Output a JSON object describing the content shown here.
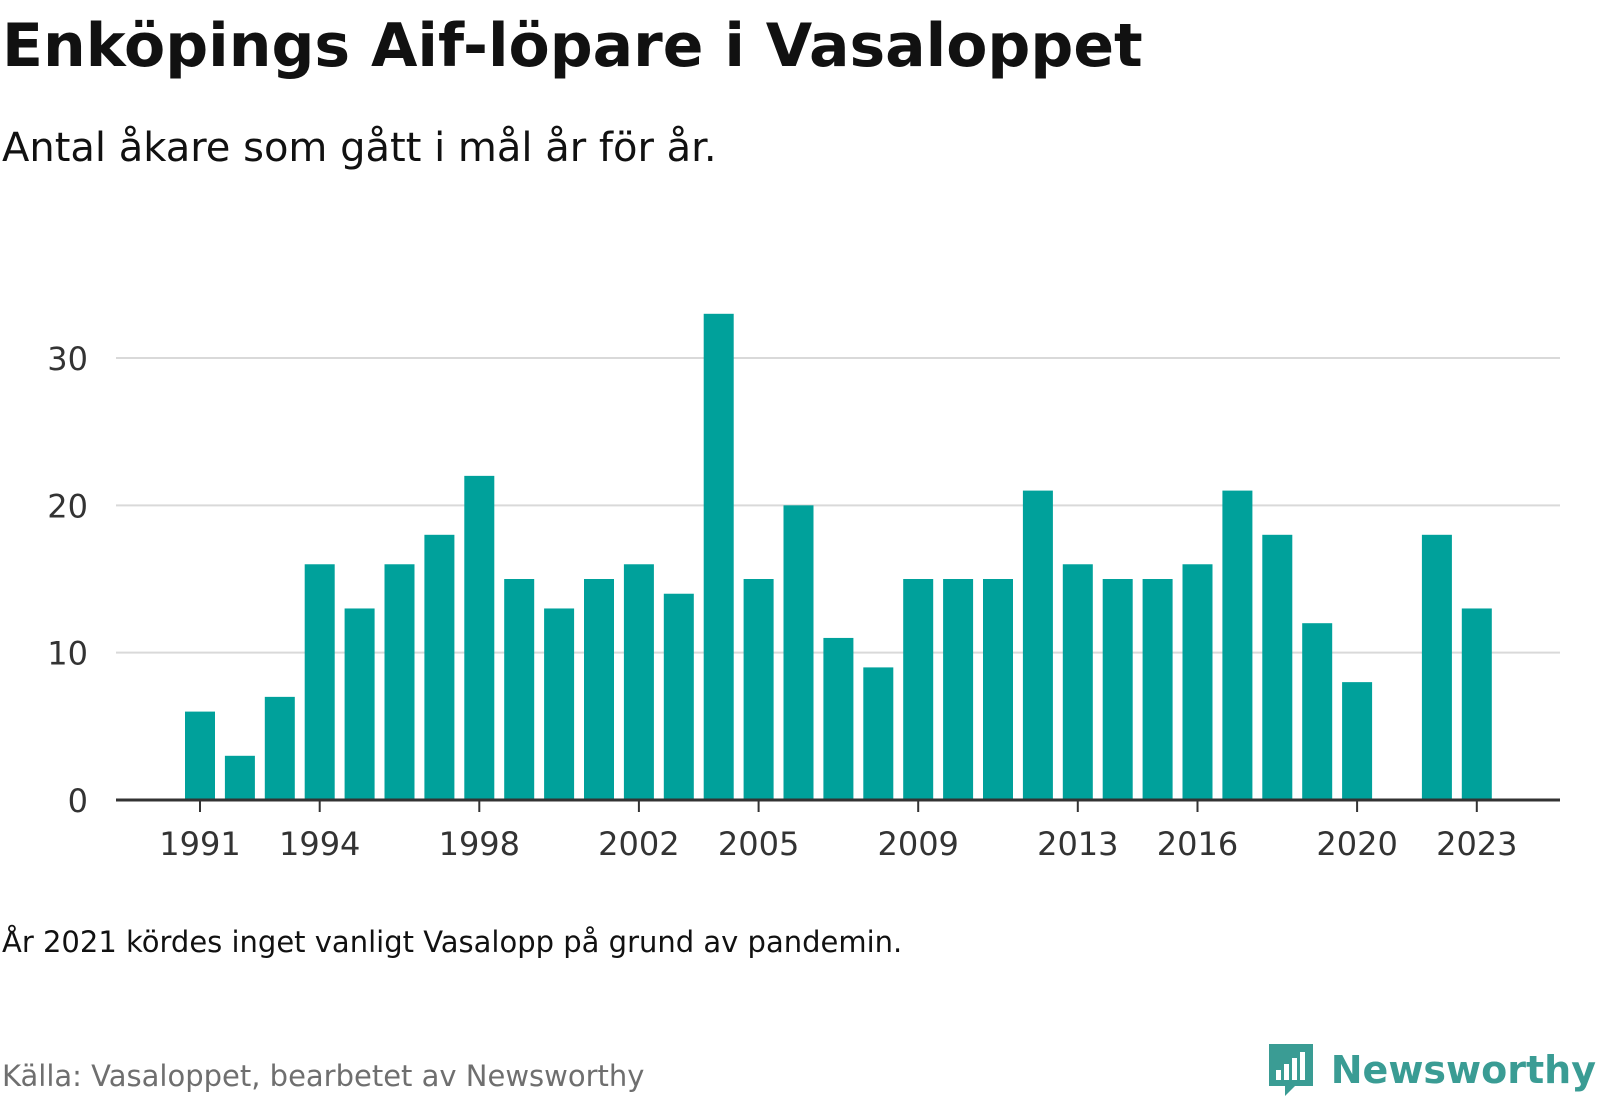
{
  "title": "Enköpings Aif-löpare i Vasaloppet",
  "subtitle": "Antal åkare som gått i mål år för år.",
  "note": "År 2021 kördes inget vanligt Vasalopp på grund av pandemin.",
  "source": "Källa: Vasaloppet, bearbetet av Newsworthy",
  "brand": {
    "name": "Newsworthy",
    "color": "#3a9c94",
    "icon": "bar-chart-speech-bubble-icon"
  },
  "colors": {
    "bar": "#00a19b",
    "grid": "#d9d9d9",
    "axis": "#333333",
    "tick_text": "#333333"
  },
  "chart_data": {
    "type": "bar",
    "title": "",
    "xlabel": "",
    "ylabel": "",
    "ylim": [
      0,
      34
    ],
    "y_ticks": [
      0,
      10,
      20,
      30
    ],
    "x_tick_labels": [
      "1991",
      "1994",
      "1998",
      "2002",
      "2005",
      "2009",
      "2013",
      "2016",
      "2020",
      "2023"
    ],
    "grid": true,
    "legend": "none",
    "x": [
      1991,
      1992,
      1993,
      1994,
      1995,
      1996,
      1997,
      1998,
      1999,
      2000,
      2001,
      2002,
      2003,
      2004,
      2005,
      2006,
      2007,
      2008,
      2009,
      2010,
      2011,
      2012,
      2013,
      2014,
      2015,
      2016,
      2017,
      2018,
      2019,
      2020,
      2021,
      2022,
      2023
    ],
    "values": [
      6,
      3,
      7,
      16,
      13,
      16,
      18,
      22,
      15,
      13,
      15,
      16,
      14,
      33,
      15,
      20,
      11,
      9,
      15,
      15,
      15,
      21,
      16,
      15,
      15,
      16,
      21,
      18,
      12,
      8,
      null,
      18,
      13
    ]
  }
}
